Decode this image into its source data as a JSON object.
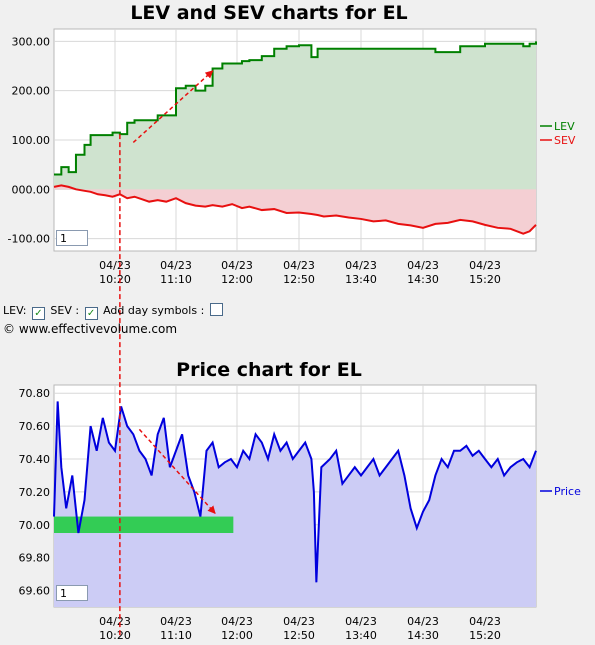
{
  "colors": {
    "lev": "#008000",
    "sev": "#e81010",
    "price": "#0000dd",
    "lev_fill": "#cfe3cf",
    "sev_fill": "#f4cfd3",
    "price_fill": "#ccccf5",
    "support_band": "#33cc55",
    "arrow": "#e81010"
  },
  "top_chart": {
    "title": "LEV and SEV charts for EL",
    "y_ticks": [
      "300.00",
      "200.00",
      "100.00",
      "000.00",
      "-100.00"
    ],
    "y_tick_values": [
      300,
      200,
      100,
      0,
      -100
    ],
    "spinner_value": "1",
    "legend": {
      "lev": "LEV",
      "sev": "SEV"
    }
  },
  "bottom_chart": {
    "title": "Price chart for EL",
    "y_ticks": [
      "70.80",
      "70.60",
      "70.40",
      "70.20",
      "70.00",
      "69.80",
      "69.60"
    ],
    "y_tick_values": [
      70.8,
      70.6,
      70.4,
      70.2,
      70.0,
      69.8,
      69.6
    ],
    "spinner_value": "1",
    "legend": {
      "price": "Price"
    }
  },
  "x_ticks": [
    {
      "date": "04/23",
      "time": "10:20"
    },
    {
      "date": "04/23",
      "time": "11:10"
    },
    {
      "date": "04/23",
      "time": "12:00"
    },
    {
      "date": "04/23",
      "time": "12:50"
    },
    {
      "date": "04/23",
      "time": "13:40"
    },
    {
      "date": "04/23",
      "time": "14:30"
    },
    {
      "date": "04/23",
      "time": "15:20"
    }
  ],
  "controls": {
    "lev_label": "LEV:",
    "sev_label": "SEV :",
    "day_symbols_label": "Add day symbols :",
    "lev_checked": "✓",
    "sev_checked": "✓",
    "copyright": "© www.effectivevolume.com"
  },
  "chart_data": [
    {
      "type": "line",
      "title": "LEV and SEV charts for EL",
      "ylim": [
        -125,
        325
      ],
      "x_range": [
        "09:30",
        "16:00"
      ],
      "series": [
        {
          "name": "LEV",
          "x": [
            "09:30",
            "09:36",
            "09:42",
            "09:48",
            "09:55",
            "10:00",
            "10:06",
            "10:12",
            "10:18",
            "10:24",
            "10:30",
            "10:36",
            "10:42",
            "10:48",
            "10:55",
            "11:02",
            "11:10",
            "11:18",
            "11:26",
            "11:34",
            "11:40",
            "11:48",
            "11:56",
            "12:04",
            "12:10",
            "12:20",
            "12:30",
            "12:40",
            "12:50",
            "13:00",
            "13:05",
            "13:10",
            "13:20",
            "13:30",
            "13:40",
            "13:50",
            "14:00",
            "14:10",
            "14:20",
            "14:30",
            "14:40",
            "14:50",
            "15:00",
            "15:10",
            "15:20",
            "15:30",
            "15:40",
            "15:50",
            "15:55",
            "16:00"
          ],
          "values": [
            30,
            45,
            35,
            70,
            90,
            110,
            110,
            110,
            115,
            112,
            135,
            140,
            140,
            140,
            150,
            150,
            205,
            210,
            200,
            210,
            245,
            255,
            255,
            260,
            262,
            270,
            285,
            290,
            292,
            268,
            285,
            285,
            285,
            285,
            285,
            285,
            285,
            285,
            285,
            285,
            278,
            278,
            290,
            290,
            295,
            295,
            295,
            290,
            295,
            300
          ]
        },
        {
          "name": "SEV",
          "x": [
            "09:30",
            "09:36",
            "09:42",
            "09:48",
            "09:55",
            "10:00",
            "10:06",
            "10:12",
            "10:18",
            "10:24",
            "10:30",
            "10:36",
            "10:42",
            "10:48",
            "10:55",
            "11:02",
            "11:10",
            "11:18",
            "11:26",
            "11:34",
            "11:40",
            "11:48",
            "11:56",
            "12:04",
            "12:10",
            "12:20",
            "12:30",
            "12:40",
            "12:50",
            "13:00",
            "13:05",
            "13:10",
            "13:20",
            "13:30",
            "13:40",
            "13:50",
            "14:00",
            "14:10",
            "14:20",
            "14:30",
            "14:40",
            "14:50",
            "15:00",
            "15:10",
            "15:20",
            "15:30",
            "15:40",
            "15:50",
            "15:55",
            "16:00"
          ],
          "values": [
            5,
            8,
            5,
            0,
            -3,
            -5,
            -10,
            -12,
            -15,
            -10,
            -18,
            -15,
            -20,
            -25,
            -22,
            -25,
            -18,
            -28,
            -33,
            -35,
            -32,
            -35,
            -30,
            -38,
            -35,
            -42,
            -40,
            -48,
            -47,
            -50,
            -52,
            -55,
            -53,
            -57,
            -60,
            -65,
            -63,
            -70,
            -73,
            -78,
            -70,
            -68,
            -62,
            -65,
            -72,
            -78,
            -80,
            -90,
            -85,
            -72
          ]
        }
      ],
      "annotations": [
        {
          "type": "arrow",
          "from": [
            "10:35",
            95
          ],
          "to": [
            "11:40",
            240
          ]
        }
      ]
    },
    {
      "type": "line",
      "title": "Price chart for EL",
      "ylim": [
        69.5,
        70.85
      ],
      "x_range": [
        "09:30",
        "16:00"
      ],
      "series": [
        {
          "name": "Price",
          "x": [
            "09:30",
            "09:33",
            "09:36",
            "09:40",
            "09:45",
            "09:50",
            "09:55",
            "10:00",
            "10:05",
            "10:10",
            "10:15",
            "10:20",
            "10:25",
            "10:30",
            "10:35",
            "10:40",
            "10:45",
            "10:50",
            "10:55",
            "11:00",
            "11:05",
            "11:10",
            "11:15",
            "11:20",
            "11:25",
            "11:30",
            "11:35",
            "11:40",
            "11:45",
            "11:50",
            "11:55",
            "12:00",
            "12:05",
            "12:10",
            "12:15",
            "12:20",
            "12:25",
            "12:30",
            "12:35",
            "12:40",
            "12:45",
            "12:50",
            "12:55",
            "13:00",
            "13:02",
            "13:04",
            "13:08",
            "13:15",
            "13:20",
            "13:25",
            "13:30",
            "13:35",
            "13:40",
            "13:45",
            "13:50",
            "13:55",
            "14:00",
            "14:05",
            "14:10",
            "14:15",
            "14:20",
            "14:25",
            "14:30",
            "14:35",
            "14:40",
            "14:45",
            "14:50",
            "14:55",
            "15:00",
            "15:05",
            "15:10",
            "15:15",
            "15:20",
            "15:25",
            "15:30",
            "15:35",
            "15:40",
            "15:45",
            "15:50",
            "15:55",
            "16:00"
          ],
          "values": [
            70.05,
            70.75,
            70.35,
            70.1,
            70.3,
            69.95,
            70.15,
            70.6,
            70.45,
            70.65,
            70.5,
            70.45,
            70.72,
            70.6,
            70.55,
            70.45,
            70.4,
            70.3,
            70.55,
            70.65,
            70.35,
            70.45,
            70.55,
            70.3,
            70.2,
            70.05,
            70.45,
            70.5,
            70.35,
            70.38,
            70.4,
            70.35,
            70.45,
            70.4,
            70.55,
            70.5,
            70.4,
            70.55,
            70.45,
            70.5,
            70.4,
            70.45,
            70.5,
            70.4,
            70.2,
            69.65,
            70.35,
            70.4,
            70.45,
            70.25,
            70.3,
            70.35,
            70.3,
            70.35,
            70.4,
            70.3,
            70.35,
            70.4,
            70.45,
            70.3,
            70.1,
            69.98,
            70.08,
            70.15,
            70.3,
            70.4,
            70.35,
            70.45,
            70.45,
            70.48,
            70.42,
            70.45,
            70.4,
            70.35,
            70.4,
            70.3,
            70.35,
            70.38,
            70.4,
            70.35,
            70.45
          ]
        }
      ],
      "annotations": [
        {
          "type": "arrow",
          "from": [
            "10:40",
            70.58
          ],
          "to": [
            "11:42",
            70.07
          ]
        },
        {
          "type": "band",
          "y_range": [
            69.95,
            70.05
          ],
          "x_range": [
            "09:30",
            "11:57"
          ]
        }
      ]
    }
  ]
}
